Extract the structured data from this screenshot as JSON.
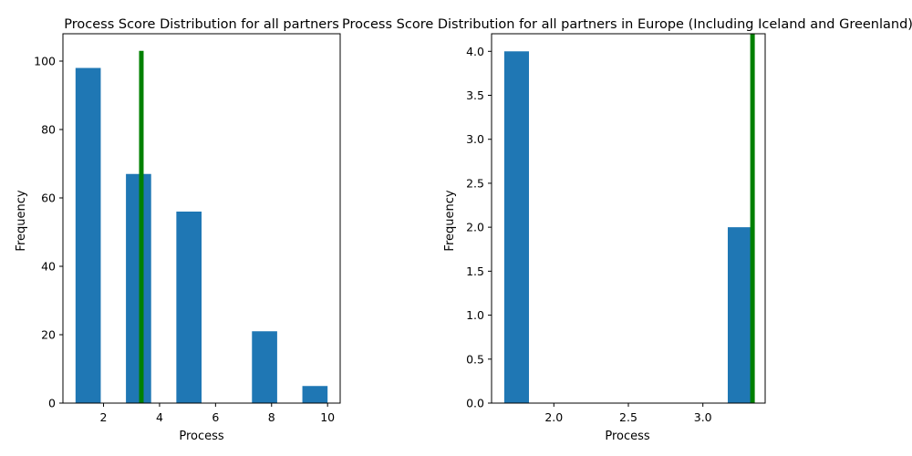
{
  "chart_data": [
    {
      "type": "histogram",
      "title": "Process Score Distribution for all partners",
      "xlabel": "Process",
      "ylabel": "Frequency",
      "xlim": [
        0.55,
        10.45
      ],
      "ylim": [
        0,
        108
      ],
      "xticks": [
        2,
        4,
        6,
        8,
        10
      ],
      "yticks": [
        0,
        20,
        40,
        60,
        80,
        100
      ],
      "bars": [
        {
          "x0": 1.0,
          "x1": 1.9,
          "value": 98
        },
        {
          "x0": 2.8,
          "x1": 3.7,
          "value": 67
        },
        {
          "x0": 4.6,
          "x1": 5.5,
          "value": 56
        },
        {
          "x0": 7.3,
          "x1": 8.2,
          "value": 21
        },
        {
          "x0": 9.1,
          "x1": 10.0,
          "value": 5
        }
      ],
      "bar_color": "#1f77b4",
      "marker_line": {
        "x": 3.35,
        "y0": 0,
        "y1": 103,
        "color": "#008000"
      },
      "grid": false
    },
    {
      "type": "histogram",
      "title": "Process Score Distribution for all partners in Europe (Including Iceland and Greenland)",
      "xlabel": "Process",
      "ylabel": "Frequency",
      "xlim": [
        1.582,
        3.418
      ],
      "ylim": [
        0,
        4.2
      ],
      "xticks": [
        2.0,
        2.5,
        3.0
      ],
      "yticks": [
        0.0,
        0.5,
        1.0,
        1.5,
        2.0,
        2.5,
        3.0,
        3.5,
        4.0
      ],
      "bars": [
        {
          "x0": 1.667,
          "x1": 1.833,
          "value": 4
        },
        {
          "x0": 3.167,
          "x1": 3.333,
          "value": 2
        }
      ],
      "bar_color": "#1f77b4",
      "marker_line": {
        "x": 3.333,
        "y0": 0,
        "y1": 4.2,
        "color": "#008000"
      },
      "grid": false
    }
  ]
}
